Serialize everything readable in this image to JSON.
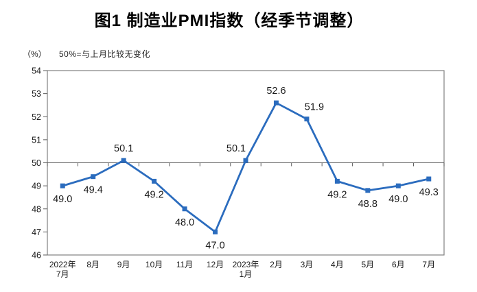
{
  "page": {
    "background": "#ffffff"
  },
  "chart_data": {
    "type": "line",
    "title": "图1 制造业PMI指数（经季节调整）",
    "unit_label": "（%）",
    "note": "50%=与上月比较无变化",
    "categories": [
      "2022年\n7月",
      "8月",
      "9月",
      "10月",
      "11月",
      "12月",
      "2023年\n1月",
      "2月",
      "3月",
      "4月",
      "5月",
      "6月",
      "7月"
    ],
    "values": [
      49.0,
      49.4,
      50.1,
      49.2,
      48.0,
      47.0,
      50.1,
      52.6,
      51.9,
      49.2,
      48.8,
      49.0,
      49.3
    ],
    "data_labels": [
      "49.0",
      "49.4",
      "50.1",
      "49.2",
      "48.0",
      "47.0",
      "50.1",
      "52.6",
      "51.9",
      "49.2",
      "48.8",
      "49.0",
      "49.3"
    ],
    "ylim": [
      46,
      54
    ],
    "yticks": [
      46,
      47,
      48,
      49,
      50,
      51,
      52,
      53,
      54
    ],
    "reference_line": 50,
    "legend": "none",
    "grid": "off",
    "colors": {
      "line": "#2B6CBE",
      "marker": "#2B6CBE",
      "axis": "#595959",
      "border": "#808080",
      "text": "#1a1a1a"
    }
  }
}
